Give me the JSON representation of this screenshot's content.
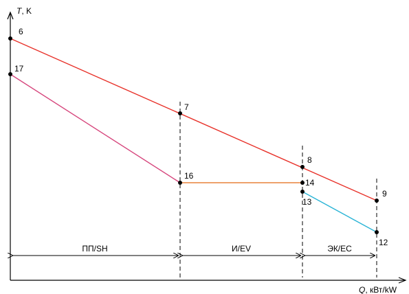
{
  "axes": {
    "y_label_symbol": "T",
    "y_label_unit": ", K",
    "x_label_symbol": "Q",
    "x_label_unit": ", кВт/kW"
  },
  "points": {
    "p6": "6",
    "p7": "7",
    "p8": "8",
    "p9": "9",
    "p12": "12",
    "p13": "13",
    "p14": "14",
    "p16": "16",
    "p17": "17"
  },
  "zones": {
    "superheater": "ПП/SH",
    "evaporator": "И/EV",
    "economizer": "ЭК/EC"
  },
  "colors": {
    "gas_line": "#e8322a",
    "superheat_line": "#d6457c",
    "evaporation_line": "#e8823a",
    "economizer_line": "#2ab4d6",
    "axis": "#000000"
  }
}
